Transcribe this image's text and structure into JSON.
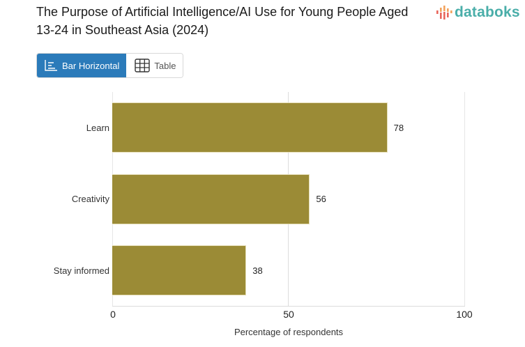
{
  "header": {
    "title": "The Purpose of Artificial Intelligence/AI Use for Young People Aged 13-24 in Southeast Asia (2024)",
    "logo_text": "databoks"
  },
  "view_switcher": {
    "options": [
      {
        "label": "Bar Horizontal",
        "icon": "bar-horizontal-icon",
        "active": true
      },
      {
        "label": "Table",
        "icon": "table-grid-icon",
        "active": false
      }
    ]
  },
  "colors": {
    "bar": "#9b8b36",
    "accent": "#2b7bba",
    "logo_text": "#4aaea9",
    "logo_bars": [
      "#e8655a",
      "#f2a25c",
      "#e8655a",
      "#f2a25c",
      "#e8655a"
    ]
  },
  "chart_data": {
    "type": "bar",
    "orientation": "horizontal",
    "title": "The Purpose of Artificial Intelligence/AI Use for Young People Aged 13-24 in Southeast Asia (2024)",
    "categories": [
      "Learn",
      "Creativity",
      "Stay informed"
    ],
    "values": [
      78,
      56,
      38
    ],
    "value_labels": [
      "78",
      "56",
      "38"
    ],
    "xlabel": "Percentage of respondents",
    "ylabel": "",
    "xlim": [
      0,
      100
    ],
    "x_ticks": [
      "0",
      "50",
      "100"
    ],
    "grid": true,
    "legend": null
  }
}
